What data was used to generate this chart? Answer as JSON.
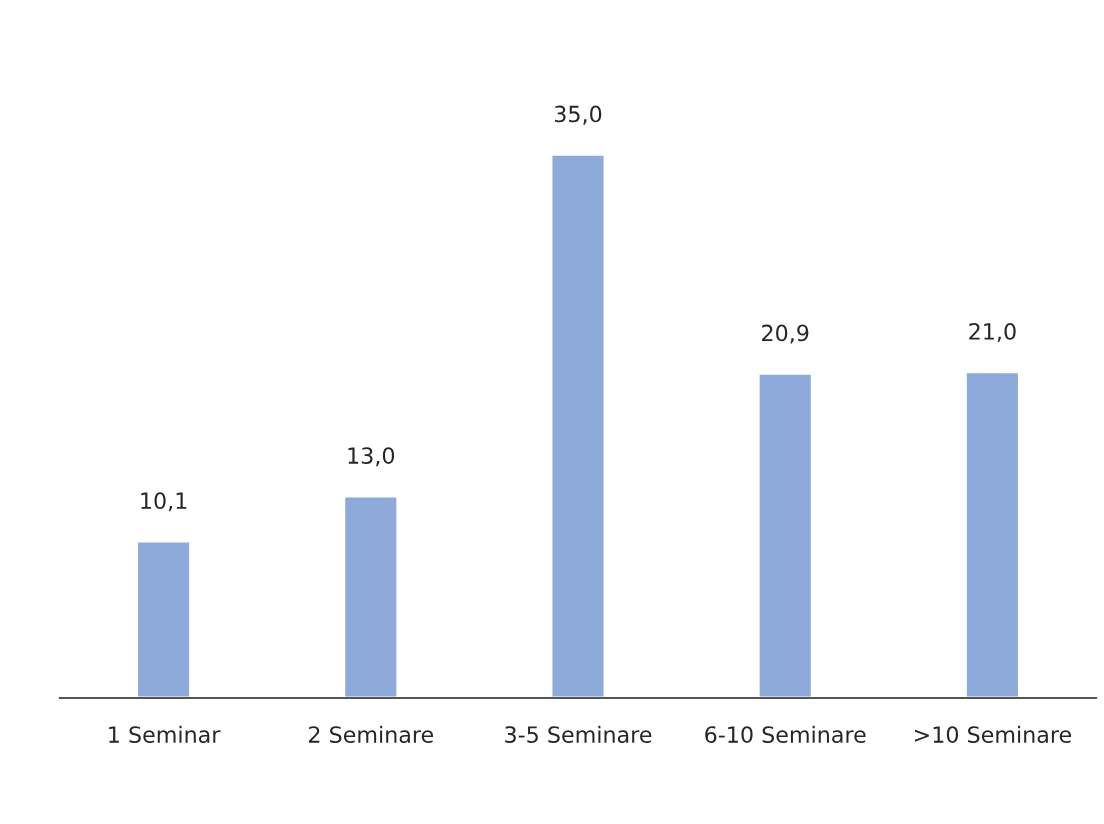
{
  "chart_data": {
    "type": "bar",
    "categories": [
      "1 Seminar",
      "2 Seminare",
      "3-5 Seminare",
      "6-10 Seminare",
      ">10 Seminare"
    ],
    "values": [
      10.1,
      13.0,
      35.0,
      20.9,
      21.0
    ],
    "value_labels": [
      "10,1",
      "13,0",
      "35,0",
      "20,9",
      "21,0"
    ],
    "color": "#8eaadb",
    "grid": false,
    "legend": false
  }
}
